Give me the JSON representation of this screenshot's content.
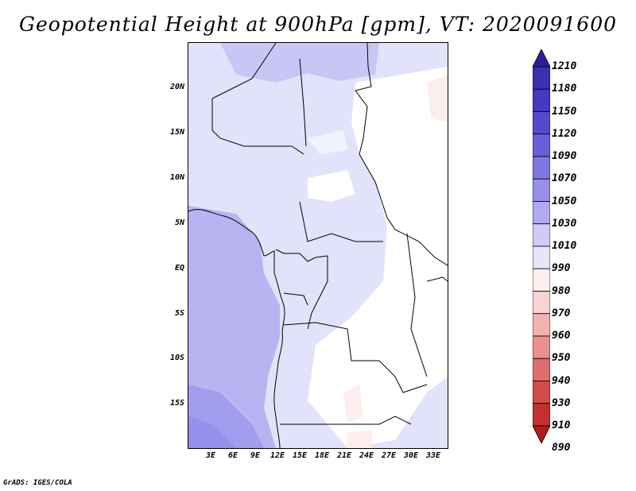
{
  "title": "Geopotential Height at 900hPa [gpm], VT: 2020091600",
  "footer": "GrADS: IGES/COLA",
  "map": {
    "lat_labels": [
      "20N",
      "15N",
      "10N",
      "5N",
      "EQ",
      "5S",
      "10S",
      "15S"
    ],
    "lon_labels": [
      "3E",
      "6E",
      "9E",
      "12E",
      "15E",
      "18E",
      "21E",
      "24E",
      "27E",
      "30E",
      "33E"
    ]
  },
  "colorbar": {
    "labels": [
      "1210",
      "1180",
      "1150",
      "1120",
      "1090",
      "1070",
      "1050",
      "1030",
      "1010",
      "990",
      "980",
      "970",
      "960",
      "950",
      "940",
      "930",
      "910",
      "890"
    ],
    "colors": [
      "#2e1f9e",
      "#3b2fb2",
      "#4638c0",
      "#5548cd",
      "#6a5ed8",
      "#8076e0",
      "#9890e8",
      "#b0aaf0",
      "#cfcbf6",
      "#e6e4fb",
      "#fdeeee",
      "#f9d2d2",
      "#f3b2b2",
      "#ea9090",
      "#df6e6e",
      "#d24c4c",
      "#c43030",
      "#b21b1b"
    ]
  }
}
